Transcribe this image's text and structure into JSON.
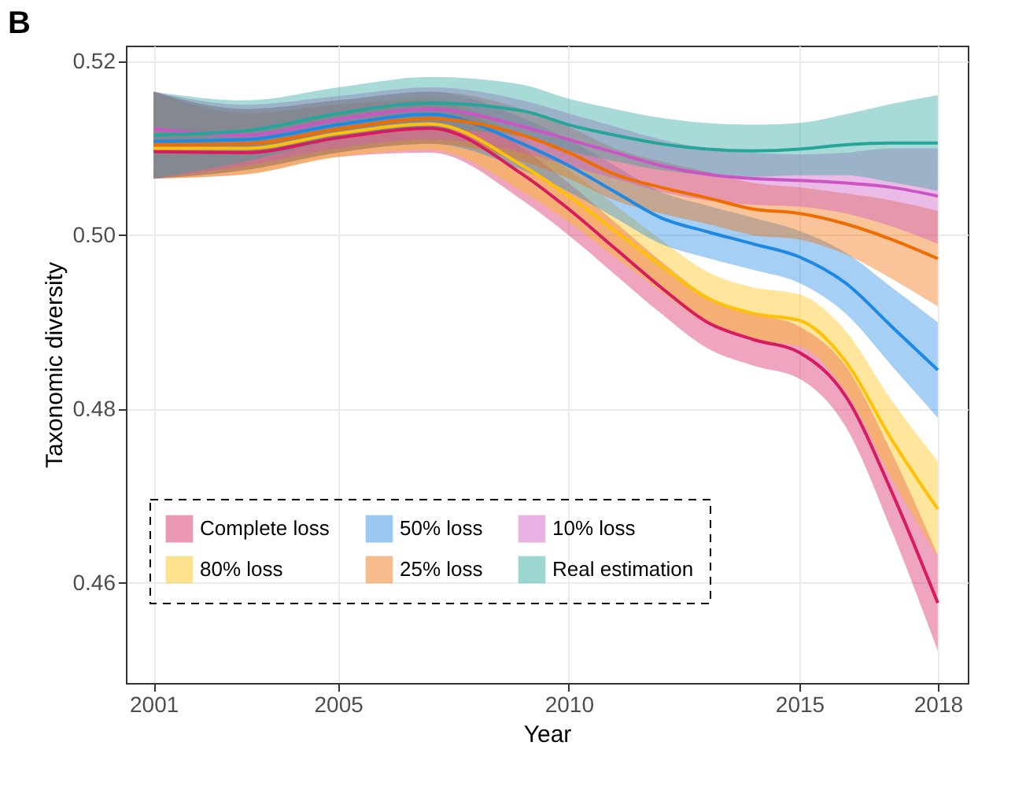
{
  "chart_data": {
    "type": "line",
    "title": "B",
    "xlabel": "Year",
    "ylabel": "Taxonomic diversity",
    "x": [
      2001,
      2003,
      2005,
      2007,
      2009,
      2010,
      2011,
      2012,
      2013,
      2014,
      2015,
      2016,
      2017,
      2018
    ],
    "xlim": [
      2000.4,
      2018.65
    ],
    "xticks": [
      2001,
      2005,
      2010,
      2015,
      2018
    ],
    "ylim": [
      0.4485,
      0.5218
    ],
    "yticks": [
      0.46,
      0.48,
      {
        "value": 0.5,
        "label": "0.50"
      },
      0.52
    ],
    "grid": true,
    "legend": "bottom left",
    "marker": "none",
    "line_style": "solid",
    "series": [
      {
        "name": "Complete loss",
        "color": "#d81b60",
        "values": [
          0.5096,
          0.5095,
          0.5112,
          0.5123,
          0.507,
          0.503,
          0.4985,
          0.494,
          0.49,
          0.488,
          0.4865,
          0.4815,
          0.4705,
          0.4577
        ],
        "lower": [
          0.5065,
          0.507,
          0.509,
          0.5095,
          0.504,
          0.5,
          0.4955,
          0.491,
          0.487,
          0.485,
          0.4835,
          0.478,
          0.466,
          0.4522
        ],
        "upper": [
          0.5165,
          0.514,
          0.515,
          0.5155,
          0.51,
          0.506,
          0.5015,
          0.497,
          0.493,
          0.491,
          0.4895,
          0.485,
          0.475,
          0.4632
        ]
      },
      {
        "name": "80% loss",
        "color": "#ffc107",
        "values": [
          0.51,
          0.51,
          0.5117,
          0.5128,
          0.508,
          0.5045,
          0.5005,
          0.4965,
          0.4928,
          0.491,
          0.4902,
          0.4855,
          0.4765,
          0.4685
        ],
        "lower": [
          0.5065,
          0.507,
          0.509,
          0.5098,
          0.505,
          0.5015,
          0.4975,
          0.4935,
          0.4898,
          0.488,
          0.4872,
          0.482,
          0.472,
          0.463
        ],
        "upper": [
          0.5165,
          0.514,
          0.515,
          0.5158,
          0.511,
          0.5075,
          0.5035,
          0.4995,
          0.4958,
          0.494,
          0.4932,
          0.489,
          0.481,
          0.474
        ]
      },
      {
        "name": "50% loss",
        "color": "#1e88e5",
        "values": [
          0.5108,
          0.511,
          0.5127,
          0.5139,
          0.5105,
          0.508,
          0.505,
          0.502,
          0.5004,
          0.499,
          0.4975,
          0.4945,
          0.4895,
          0.4845
        ],
        "lower": [
          0.5065,
          0.5075,
          0.5095,
          0.5105,
          0.5075,
          0.505,
          0.502,
          0.499,
          0.4974,
          0.496,
          0.4945,
          0.491,
          0.485,
          0.479
        ],
        "upper": [
          0.5165,
          0.5145,
          0.5155,
          0.5165,
          0.5135,
          0.511,
          0.508,
          0.505,
          0.5034,
          0.502,
          0.5005,
          0.498,
          0.494,
          0.49
        ]
      },
      {
        "name": "25% loss",
        "color": "#ef6c00",
        "values": [
          0.5104,
          0.5105,
          0.5122,
          0.5134,
          0.5115,
          0.5095,
          0.507,
          0.5055,
          0.5043,
          0.503,
          0.5025,
          0.5013,
          0.4995,
          0.4973
        ],
        "lower": [
          0.5065,
          0.5075,
          0.5095,
          0.5105,
          0.5085,
          0.5065,
          0.504,
          0.5025,
          0.5013,
          0.5,
          0.4995,
          0.4978,
          0.495,
          0.4918
        ],
        "upper": [
          0.5165,
          0.5145,
          0.5155,
          0.5165,
          0.5145,
          0.5125,
          0.51,
          0.5085,
          0.5073,
          0.506,
          0.5055,
          0.5048,
          0.504,
          0.5028
        ]
      },
      {
        "name": "10% loss",
        "color": "#cc55c5",
        "values": [
          0.5122,
          0.5115,
          0.5133,
          0.5145,
          0.5125,
          0.511,
          0.5095,
          0.508,
          0.507,
          0.5065,
          0.5063,
          0.506,
          0.5055,
          0.5045
        ],
        "lower": [
          0.5065,
          0.508,
          0.51,
          0.511,
          0.5095,
          0.508,
          0.5065,
          0.505,
          0.504,
          0.5035,
          0.5033,
          0.5025,
          0.501,
          0.499
        ],
        "upper": [
          0.5165,
          0.515,
          0.516,
          0.517,
          0.5155,
          0.514,
          0.5125,
          0.511,
          0.51,
          0.5095,
          0.5093,
          0.5095,
          0.51,
          0.51
        ]
      },
      {
        "name": "Real estimation",
        "color": "#26a69a",
        "values": [
          0.5115,
          0.512,
          0.514,
          0.5152,
          0.5143,
          0.5127,
          0.5115,
          0.5105,
          0.5099,
          0.5097,
          0.5099,
          0.5104,
          0.5106,
          0.5106
        ],
        "lower": [
          0.5065,
          0.5085,
          0.511,
          0.5122,
          0.5113,
          0.5097,
          0.5085,
          0.5075,
          0.5069,
          0.5067,
          0.5069,
          0.5069,
          0.5061,
          0.5051
        ],
        "upper": [
          0.5165,
          0.5155,
          0.517,
          0.5182,
          0.5173,
          0.5157,
          0.5145,
          0.5135,
          0.5129,
          0.5127,
          0.5129,
          0.5139,
          0.5151,
          0.5161
        ]
      }
    ]
  }
}
